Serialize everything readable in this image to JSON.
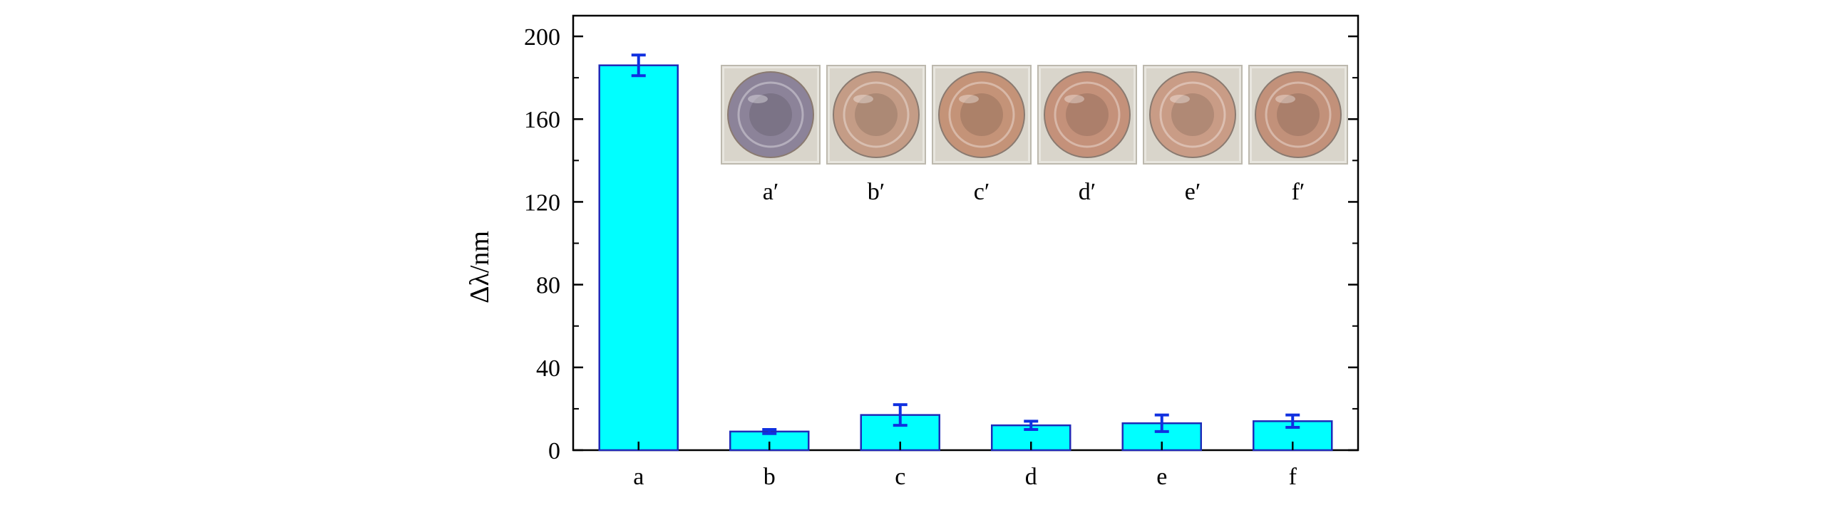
{
  "chart_data": {
    "type": "bar",
    "categories": [
      "a",
      "b",
      "c",
      "d",
      "e",
      "f"
    ],
    "values": [
      186,
      9,
      17,
      12,
      13,
      14
    ],
    "errors": [
      5,
      1,
      5,
      2,
      4,
      3
    ],
    "ylabel": "Δλ/nm",
    "xlabel": "",
    "ylim": [
      0,
      210
    ],
    "yticks": [
      0,
      40,
      80,
      120,
      160,
      200
    ],
    "bar_color": "#00FFFF",
    "bar_edge_color": "#1E2BB8",
    "error_color": "#1030E0",
    "inset": {
      "labels": [
        "a′",
        "b′",
        "c′",
        "d′",
        "e′",
        "f′"
      ],
      "well_colors": [
        "#8C8399",
        "#C49C86",
        "#C49378",
        "#C4917A",
        "#C99C86",
        "#C2917A"
      ]
    }
  }
}
